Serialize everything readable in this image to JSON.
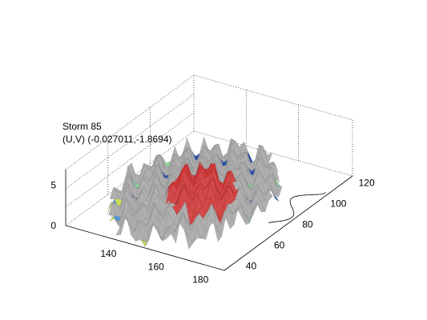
{
  "chart_data": {
    "type": "surface",
    "title": [
      "Storm 85",
      "(U,V) (-0.027011,-1.8694)"
    ],
    "x_axis": {
      "label": "",
      "ticks": [
        "140",
        "160",
        "180"
      ]
    },
    "y_axis": {
      "label": "",
      "ticks": [
        "40",
        "60",
        "80",
        "100",
        "120"
      ]
    },
    "z_axis": {
      "label": "",
      "ticks": [
        "0",
        "5"
      ]
    },
    "grid": true,
    "colormap": [
      "#1a3fa0",
      "#3a8fd6",
      "#4cc0c0",
      "#7fd08a",
      "#c8d84a",
      "#d44040"
    ],
    "surface_colors": {
      "low": "#a8a8a8",
      "high": "#d03a3a",
      "edge": "#2b5bb5"
    }
  }
}
